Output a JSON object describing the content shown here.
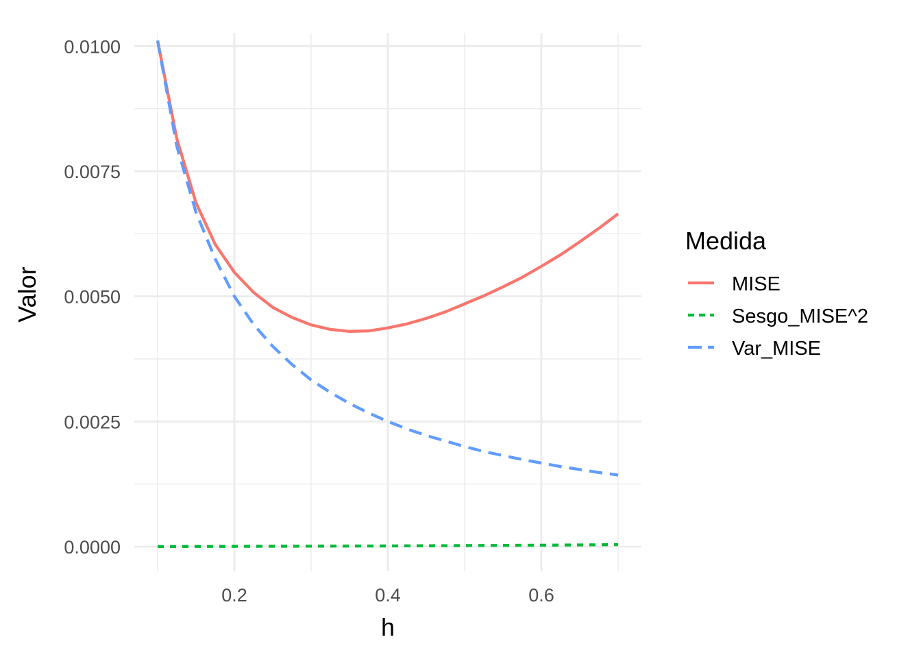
{
  "chart_data": {
    "type": "line",
    "xlabel": "h",
    "ylabel": "Valor",
    "xlim": [
      0.1,
      0.7
    ],
    "ylim": [
      0,
      0.0101
    ],
    "x_ticks": [
      0.2,
      0.4,
      0.6
    ],
    "x_tick_labels": [
      "0.2",
      "0.4",
      "0.6"
    ],
    "y_ticks": [
      0,
      0.0025,
      0.005,
      0.0075,
      0.01
    ],
    "y_tick_labels": [
      "0.0000",
      "0.0025",
      "0.0050",
      "0.0075",
      "0.0100"
    ],
    "grid": true,
    "legend": {
      "title": "Medida",
      "position": "right"
    },
    "x": [
      0.1,
      0.125,
      0.15,
      0.175,
      0.2,
      0.225,
      0.25,
      0.275,
      0.3,
      0.325,
      0.35,
      0.375,
      0.4,
      0.425,
      0.45,
      0.475,
      0.5,
      0.525,
      0.55,
      0.575,
      0.6,
      0.625,
      0.65,
      0.675,
      0.7
    ],
    "series": [
      {
        "name": "MISE",
        "color": "#F8766D",
        "dash": "solid",
        "values": [
          0.01011,
          0.00815,
          0.00687,
          0.00604,
          0.00548,
          0.00508,
          0.00478,
          0.00458,
          0.00443,
          0.00434,
          0.0043,
          0.00431,
          0.00437,
          0.00445,
          0.00456,
          0.00469,
          0.00485,
          0.00501,
          0.00519,
          0.00538,
          0.0056,
          0.00583,
          0.00609,
          0.00636,
          0.00665
        ]
      },
      {
        "name": "Sesgo_MISE^2",
        "color": "#00BA38",
        "dash": "dotted",
        "values": [
          2e-06,
          2e-06,
          3e-06,
          4e-06,
          5e-06,
          6e-06,
          7e-06,
          8e-06,
          9e-06,
          1e-05,
          1.1e-05,
          1.2e-05,
          1.3e-05,
          1.5e-05,
          1.7e-05,
          1.9e-05,
          2.1e-05,
          2.3e-05,
          2.5e-05,
          2.7e-05,
          2.9e-05,
          3.1e-05,
          3.4e-05,
          3.7e-05,
          4e-05
        ]
      },
      {
        "name": "Var_MISE",
        "color": "#619CFF",
        "dash": "dashed",
        "values": [
          0.01011,
          0.008,
          0.00668,
          0.00575,
          0.005,
          0.00444,
          0.004,
          0.00364,
          0.00333,
          0.00308,
          0.00286,
          0.00267,
          0.0025,
          0.00235,
          0.00222,
          0.00211,
          0.002,
          0.0019,
          0.00182,
          0.00174,
          0.00167,
          0.0016,
          0.00154,
          0.00148,
          0.00143
        ]
      }
    ]
  }
}
